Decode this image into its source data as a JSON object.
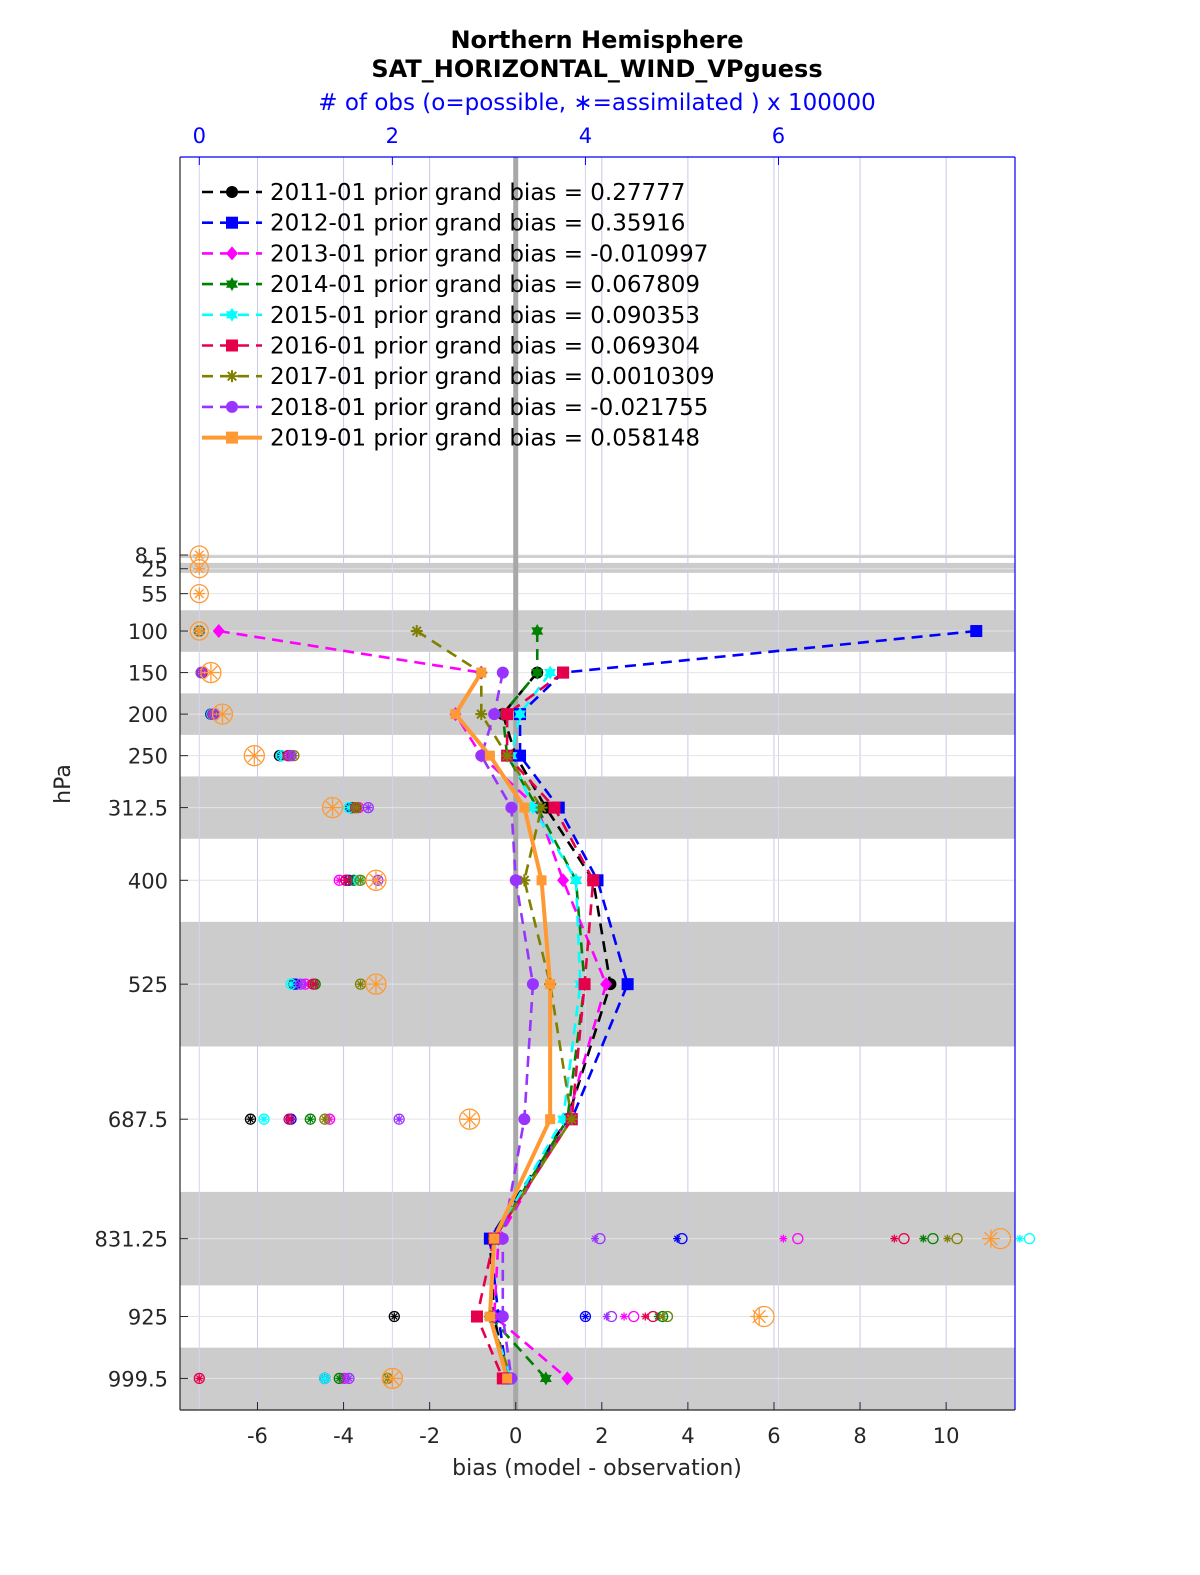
{
  "chart_data": {
    "type": "line",
    "title": "Northern Hemisphere",
    "subtitle": "SAT_HORIZONTAL_WIND_VPguess",
    "top_axis_label": "# of obs (o=possible, ∗=assimilated ) x 100000",
    "xlabel": "bias (model - observation)",
    "ylabel": "hPa",
    "xlim": [
      -7.8,
      11.6
    ],
    "x_ticks": [
      -6,
      -4,
      -2,
      0,
      2,
      4,
      6,
      8,
      10
    ],
    "top_xlim": [
      -0.2,
      8.45
    ],
    "top_ticks": [
      0,
      2,
      4,
      6
    ],
    "y_direction": "reverse",
    "levels": [
      8.5,
      25,
      55,
      100,
      150,
      200,
      250,
      312.5,
      400,
      525,
      687.5,
      831.25,
      925,
      999.5
    ],
    "level_labels": [
      "8.5",
      "25",
      "55",
      "100",
      "150",
      "200",
      "250",
      "312.5",
      "400",
      "525",
      "687.5",
      "831.25",
      "925",
      "999.5"
    ],
    "shaded_bands": [
      [
        8.5,
        12
      ],
      [
        18,
        30
      ],
      [
        75,
        125
      ],
      [
        175,
        225
      ],
      [
        275,
        350
      ],
      [
        450,
        600
      ],
      [
        775,
        887.5
      ],
      [
        962.5,
        1037.5
      ]
    ],
    "zero_line": 0,
    "grid": true,
    "legend_location": "top-left",
    "series": [
      {
        "name": "2011-01",
        "label": "2011-01 prior grand bias = 0.27777",
        "color": "#000000",
        "marker": "circle",
        "linestyle": "dashed",
        "levels": [
          150,
          200,
          250,
          312.5,
          400,
          525,
          687.5,
          831.25,
          925,
          999.5
        ],
        "values": [
          0.5,
          -0.3,
          0.0,
          0.7,
          1.8,
          2.2,
          1.2,
          -0.6,
          -0.5,
          -0.2
        ],
        "obs_possible": [
          0.02,
          0.12,
          0.83,
          1.57,
          1.52,
          0.98,
          0.53,
          3.13,
          2.02,
          1.3
        ],
        "obs_assimilated": [
          0.02,
          0.12,
          0.83,
          1.57,
          1.52,
          0.98,
          0.53,
          3.13,
          2.02,
          1.3
        ]
      },
      {
        "name": "2012-01",
        "label": "2012-01 prior grand bias = 0.35916",
        "color": "#0000ff",
        "marker": "square",
        "linestyle": "dashed",
        "levels": [
          100,
          150,
          200,
          250,
          312.5,
          400,
          525,
          687.5,
          831.25,
          925,
          999.5
        ],
        "values": [
          10.7,
          1.1,
          0.1,
          0.1,
          1.0,
          1.9,
          2.6,
          1.3,
          -0.6,
          -0.4,
          -0.2
        ],
        "obs_possible": [
          0.0,
          0.02,
          0.12,
          0.85,
          1.58,
          1.55,
          1.0,
          0.95,
          5.0,
          4.0,
          1.3
        ],
        "obs_assimilated": [
          0.0,
          0.02,
          0.12,
          0.85,
          1.58,
          1.55,
          1.0,
          0.95,
          4.95,
          4.0,
          1.3
        ]
      },
      {
        "name": "2013-01",
        "label": "2013-01 prior grand bias = -0.010997",
        "color": "#ff00ff",
        "marker": "diamond",
        "linestyle": "dashed",
        "levels": [
          100,
          150,
          200,
          250,
          312.5,
          400,
          525,
          687.5,
          831.25,
          925,
          999.5
        ],
        "values": [
          -6.9,
          -0.8,
          -1.4,
          -0.8,
          0.5,
          1.1,
          2.1,
          1.2,
          -0.4,
          -0.5,
          1.2
        ],
        "obs_possible": [
          0.0,
          0.02,
          0.14,
          0.93,
          1.65,
          1.45,
          1.1,
          1.35,
          6.2,
          4.5,
          1.5
        ],
        "obs_assimilated": [
          0.0,
          0.02,
          0.14,
          0.93,
          1.65,
          1.45,
          1.1,
          1.35,
          6.05,
          4.4,
          1.5
        ]
      },
      {
        "name": "2014-01",
        "label": "2014-01 prior grand bias = 0.067809",
        "color": "#008000",
        "marker": "hexagram",
        "linestyle": "dashed",
        "levels": [
          100,
          150,
          200,
          250,
          312.5,
          400,
          525,
          687.5,
          831.25,
          925,
          999.5
        ],
        "values": [
          0.5,
          0.5,
          -0.3,
          -0.2,
          0.5,
          1.4,
          1.6,
          1.2,
          -0.5,
          -0.6,
          0.7
        ],
        "obs_possible": [
          0.0,
          0.02,
          0.13,
          0.92,
          1.6,
          1.6,
          1.2,
          1.15,
          7.6,
          4.8,
          1.45
        ],
        "obs_assimilated": [
          0.0,
          0.02,
          0.13,
          0.92,
          1.6,
          1.6,
          1.2,
          1.15,
          7.5,
          4.75,
          1.45
        ]
      },
      {
        "name": "2015-01",
        "label": "2015-01 prior grand bias = 0.090353",
        "color": "#00ffff",
        "marker": "hexagram",
        "linestyle": "dashed",
        "levels": [
          150,
          200,
          250,
          312.5,
          400,
          525,
          687.5,
          831.25,
          925,
          999.5
        ],
        "values": [
          0.8,
          0.1,
          -0.1,
          0.4,
          1.4,
          1.5,
          1.1,
          -0.5,
          -0.6,
          -0.1
        ],
        "obs_possible": [
          0.02,
          0.13,
          0.85,
          1.55,
          1.65,
          0.95,
          0.67,
          8.6,
          4.85,
          1.3
        ],
        "obs_assimilated": [
          0.02,
          0.13,
          0.85,
          1.55,
          1.65,
          0.95,
          0.67,
          8.5,
          4.8,
          1.3
        ]
      },
      {
        "name": "2016-01",
        "label": "2016-01 prior grand bias = 0.069304",
        "color": "#e6004c",
        "marker": "square",
        "linestyle": "dashed",
        "levels": [
          150,
          200,
          250,
          312.5,
          400,
          525,
          687.5,
          831.25,
          925,
          999.5
        ],
        "values": [
          1.1,
          -0.2,
          -0.2,
          0.9,
          1.8,
          1.6,
          1.3,
          -0.5,
          -0.9,
          -0.3
        ],
        "obs_possible": [
          0.03,
          0.14,
          0.92,
          1.62,
          1.52,
          1.18,
          0.93,
          7.3,
          4.7,
          0.0
        ],
        "obs_assimilated": [
          0.03,
          0.14,
          0.92,
          1.62,
          1.52,
          1.18,
          0.93,
          7.2,
          4.62,
          0.0
        ]
      },
      {
        "name": "2017-01",
        "label": "2017-01 prior grand bias = 0.0010309",
        "color": "#808000",
        "marker": "asterisk",
        "linestyle": "dashed",
        "levels": [
          100,
          150,
          200,
          250,
          312.5,
          400,
          525,
          687.5,
          831.25,
          925,
          999.5
        ],
        "values": [
          -2.3,
          -0.8,
          -0.8,
          -0.2,
          0.6,
          0.2,
          0.8,
          1.3,
          -0.5,
          -0.6,
          -0.1
        ],
        "obs_possible": [
          0.0,
          0.02,
          0.15,
          0.98,
          1.63,
          1.67,
          1.67,
          1.3,
          7.85,
          4.85,
          1.95
        ],
        "obs_assimilated": [
          0.0,
          0.02,
          0.15,
          0.98,
          1.63,
          1.67,
          1.67,
          1.3,
          7.75,
          4.8,
          1.95
        ]
      },
      {
        "name": "2018-01",
        "label": "2018-01 prior grand bias = -0.021755",
        "color": "#9933ff",
        "marker": "circle",
        "linestyle": "dashed",
        "levels": [
          150,
          200,
          250,
          312.5,
          400,
          525,
          687.5,
          831.25,
          925,
          999.5
        ],
        "values": [
          -0.3,
          -0.5,
          -0.8,
          -0.1,
          0.0,
          0.4,
          0.2,
          -0.3,
          -0.3,
          -0.1
        ],
        "obs_possible": [
          0.02,
          0.15,
          0.95,
          1.75,
          1.85,
          1.05,
          2.07,
          4.15,
          4.27,
          1.55
        ],
        "obs_assimilated": [
          0.02,
          0.15,
          0.95,
          1.75,
          1.85,
          1.05,
          2.07,
          4.1,
          4.22,
          1.55
        ]
      },
      {
        "name": "2019-01",
        "label": "2019-01 prior grand bias = 0.058148",
        "color": "#ff9933",
        "marker": "square",
        "linestyle": "solid",
        "levels": [
          150,
          200,
          250,
          312.5,
          400,
          525,
          687.5,
          831.25,
          925,
          999.5
        ],
        "values": [
          -0.8,
          -1.4,
          -0.6,
          0.2,
          0.6,
          0.8,
          0.8,
          -0.5,
          -0.6,
          -0.2
        ],
        "obs_possible": [
          0.12,
          0.24,
          0.57,
          1.38,
          1.83,
          1.83,
          2.8,
          8.3,
          5.85,
          2.0
        ],
        "obs_assimilated": [
          0.12,
          0.24,
          0.57,
          1.38,
          1.83,
          1.83,
          2.8,
          8.2,
          5.8,
          2.0
        ]
      }
    ],
    "single_level_obs": [
      {
        "level": 8.5,
        "possible": 0.0,
        "assimilated": 0.0
      },
      {
        "level": 25,
        "possible": 0.0,
        "assimilated": 0.0
      },
      {
        "level": 55,
        "possible": 0.0,
        "assimilated": 0.0
      },
      {
        "level": 100,
        "possible": 0.0,
        "assimilated": 0.0
      }
    ]
  }
}
